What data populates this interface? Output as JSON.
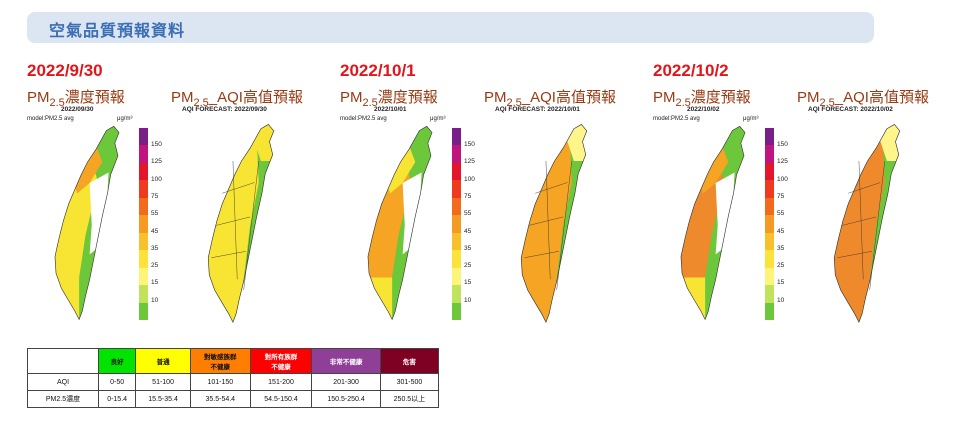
{
  "banner": {
    "title": "空氣品質預報資料"
  },
  "days": [
    {
      "date": "2022/9/30",
      "pm25_title": {
        "pre": "PM",
        "sub": "2.5",
        "post": "濃度預報"
      },
      "aqi_title": {
        "pre": "PM",
        "sub": "2.5",
        "post": "_AQI高值預報"
      },
      "pm25_date": "2022/09/30",
      "aqi_caption": "AQI FORECAST: 2022/09/30",
      "model_label": "model:PM2.5 avg"
    },
    {
      "date": "2022/10/1",
      "pm25_title": {
        "pre": "PM",
        "sub": "2.5",
        "post": "濃度預報"
      },
      "aqi_title": {
        "pre": "PM",
        "sub": "2.5",
        "post": "_AQI高值預報"
      },
      "pm25_date": "2022/10/01",
      "aqi_caption": "AQI FORECAST: 2022/10/01",
      "model_label": "model:PM2.5 avg"
    },
    {
      "date": "2022/10/2",
      "pm25_title": {
        "pre": "PM",
        "sub": "2.5",
        "post": "濃度預報"
      },
      "aqi_title": {
        "pre": "PM",
        "sub": "2.5",
        "post": "_AQI高值預報"
      },
      "pm25_date": "2022/10/02",
      "aqi_caption": "AQI FORECAST: 2022/10/02",
      "model_label": "model:PM2.5 avg"
    }
  ],
  "colorbar": {
    "unit": "μg/m³",
    "ticks": [
      "150",
      "125",
      "100",
      "75",
      "55",
      "45",
      "35",
      "25",
      "15",
      "10"
    ],
    "colors": [
      "#7a1f8a",
      "#c0147e",
      "#e3162b",
      "#f03a1e",
      "#f26a1c",
      "#f59a22",
      "#f8c12c",
      "#fbe339",
      "#fff47a",
      "#bfe35a",
      "#6cc83a"
    ]
  },
  "legend_table": {
    "headers": [
      "",
      "良好",
      "普通",
      "對敏感族群\n不健康",
      "對所有族群\n不健康",
      "非常不健康",
      "危害"
    ],
    "header_colors": [
      "#ffffff",
      "#00e400",
      "#ffff00",
      "#ff7e00",
      "#ff0000",
      "#8f3f97",
      "#7e0023"
    ],
    "header_text_colors": [
      "#111111",
      "#111111",
      "#111111",
      "#111111",
      "#ffffff",
      "#ffffff",
      "#ffffff"
    ],
    "rows": [
      {
        "label": "AQI",
        "values": [
          "0-50",
          "51-100",
          "101-150",
          "151-200",
          "201-300",
          "301-500"
        ]
      },
      {
        "label": "PM2.5濃度",
        "values": [
          "0-15.4",
          "15.5-35.4",
          "35.5-54.4",
          "54.5-150.4",
          "150.5-250.4",
          "250.5以上"
        ]
      }
    ]
  },
  "map_colors": {
    "green": "#6cc83a",
    "yellow": "#f8e433",
    "lightyellow": "#fff58a",
    "orange": "#f5a423",
    "deeporange": "#ee8a2c",
    "white": "#ffffff",
    "border": "#333333"
  }
}
